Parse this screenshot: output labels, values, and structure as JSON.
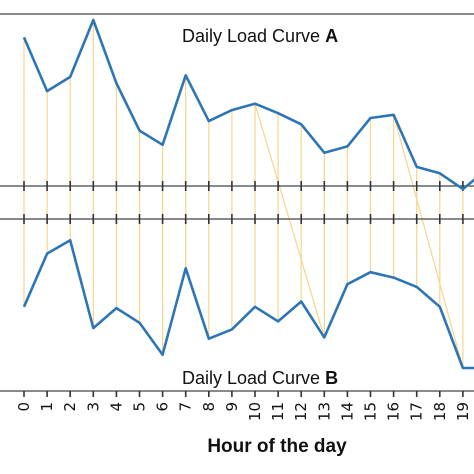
{
  "chart_data": {
    "type": "line",
    "xlabel": "Hour of the day",
    "x": [
      0,
      1,
      2,
      3,
      4,
      5,
      6,
      7,
      8,
      9,
      10,
      11,
      12,
      13,
      14,
      15,
      16,
      17,
      18,
      19,
      20
    ],
    "x_tick_labels": [
      "0",
      "1",
      "2",
      "3",
      "4",
      "5",
      "6",
      "7",
      "8",
      "9",
      "10",
      "11",
      "12",
      "13",
      "14",
      "15",
      "16",
      "17",
      "18",
      "19"
    ],
    "series": [
      {
        "name_text": "Daily Load Curve ",
        "name_bold": "A",
        "values": [
          0.89,
          0.55,
          0.64,
          1.0,
          0.6,
          0.3,
          0.21,
          0.65,
          0.36,
          0.43,
          0.47,
          0.41,
          0.34,
          0.16,
          0.2,
          0.38,
          0.4,
          0.07,
          0.03,
          -0.07,
          0.05
        ],
        "color": "#2e75b6"
      },
      {
        "name_text": "Daily Load Curve ",
        "name_bold": "B",
        "values": [
          0.46,
          0.86,
          0.96,
          0.3,
          0.45,
          0.34,
          0.1,
          0.75,
          0.22,
          0.29,
          0.46,
          0.35,
          0.5,
          0.23,
          0.63,
          0.72,
          0.68,
          0.61,
          0.46,
          0.0,
          0.0
        ],
        "color": "#2e75b6"
      }
    ],
    "connector_pairs": [
      [
        0,
        0
      ],
      [
        1,
        1
      ],
      [
        2,
        2
      ],
      [
        3,
        3
      ],
      [
        4,
        4
      ],
      [
        5,
        5
      ],
      [
        6,
        6
      ],
      [
        7,
        7
      ],
      [
        8,
        8
      ],
      [
        9,
        9
      ],
      [
        10,
        10
      ],
      [
        10,
        13
      ],
      [
        11,
        11
      ],
      [
        12,
        12
      ],
      [
        13,
        13
      ],
      [
        14,
        14
      ],
      [
        15,
        15
      ],
      [
        16,
        16
      ],
      [
        16,
        19
      ],
      [
        17,
        17
      ],
      [
        18,
        18
      ],
      [
        19,
        19
      ]
    ],
    "connector_color": "#f7d58b",
    "grid": false
  }
}
